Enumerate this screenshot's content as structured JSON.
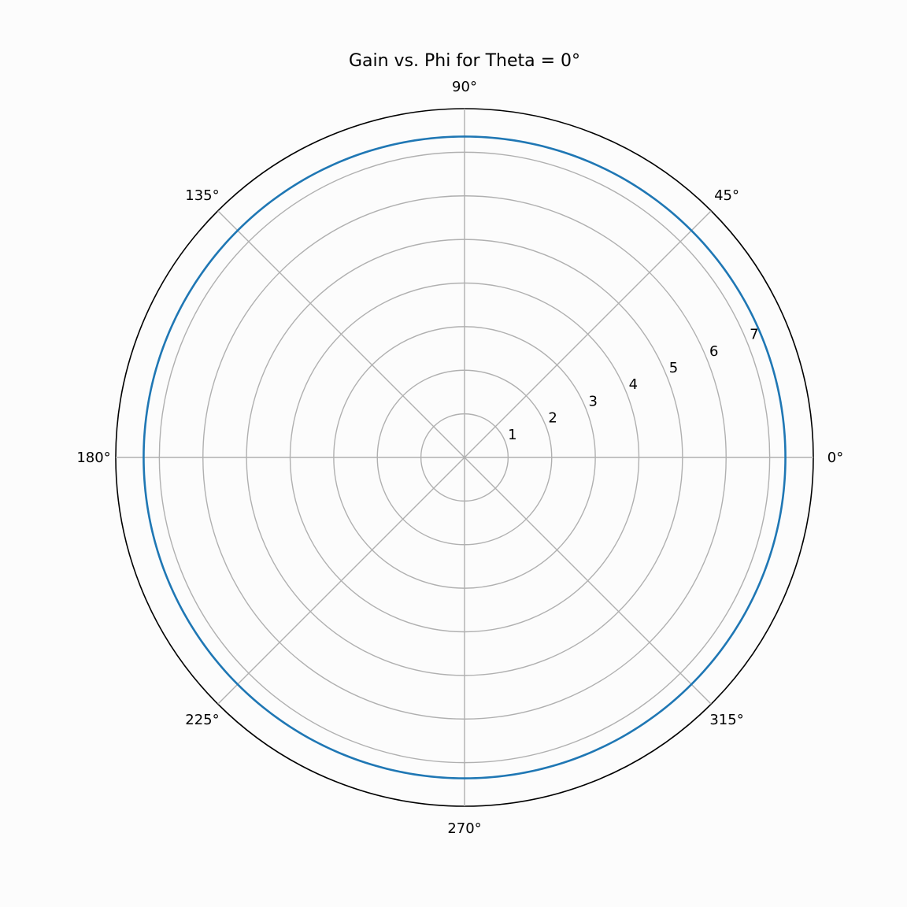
{
  "chart_data": {
    "type": "line",
    "projection": "polar",
    "title": "Gain vs. Phi for Theta = 0°",
    "xlabel": "",
    "ylabel": "",
    "theta_tick_labels": [
      "0°",
      "45°",
      "90°",
      "135°",
      "180°",
      "225°",
      "270°",
      "315°"
    ],
    "theta_ticks_deg": [
      0,
      45,
      90,
      135,
      180,
      225,
      270,
      315
    ],
    "r_ticks": [
      1,
      2,
      3,
      4,
      5,
      6,
      7
    ],
    "r_tick_labels": [
      "1",
      "2",
      "3",
      "4",
      "5",
      "6",
      "7"
    ],
    "rlim": [
      0,
      8
    ],
    "r_label_position_deg": 22.5,
    "grid": true,
    "legend": "none",
    "series": [
      {
        "color": "#1f77b4",
        "phi_deg": [
          0,
          30,
          60,
          90,
          120,
          150,
          180,
          210,
          240,
          270,
          300,
          330,
          360
        ],
        "gain": [
          7.36,
          7.36,
          7.36,
          7.36,
          7.36,
          7.36,
          7.36,
          7.36,
          7.36,
          7.36,
          7.36,
          7.36,
          7.36
        ]
      }
    ]
  }
}
